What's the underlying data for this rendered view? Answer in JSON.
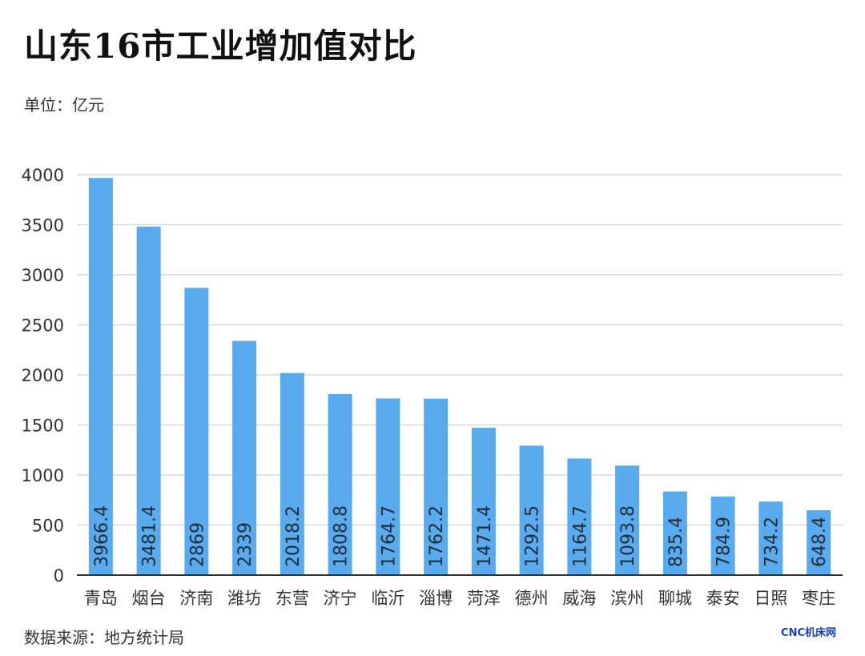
{
  "header": {
    "title": "山东16市工业增加值对比",
    "unit_label": "单位：亿元"
  },
  "footer": {
    "source": "数据来源：地方统计局",
    "brand": "CNC机床网"
  },
  "colors": {
    "bar": "#5aaaee",
    "grid": "#d9d9d9",
    "axis": "#333333",
    "label_text": "#1f2d3a"
  },
  "chart_data": {
    "type": "bar",
    "categories": [
      "青岛",
      "烟台",
      "济南",
      "潍坊",
      "东营",
      "济宁",
      "临沂",
      "淄博",
      "菏泽",
      "德州",
      "威海",
      "滨州",
      "聊城",
      "泰安",
      "日照",
      "枣庄"
    ],
    "values": [
      3966.4,
      3481.4,
      2869,
      2339,
      2018.2,
      1808.8,
      1764.7,
      1762.2,
      1471.4,
      1292.5,
      1164.7,
      1093.8,
      835.4,
      784.9,
      734.2,
      648.4
    ],
    "value_labels": [
      "3966.4",
      "3481.4",
      "2869",
      "2339",
      "2018.2",
      "1808.8",
      "1764.7",
      "1762.2",
      "1471.4",
      "1292.5",
      "1164.7",
      "1093.8",
      "835.4",
      "784.9",
      "734.2",
      "648.4"
    ],
    "yticks": [
      "0",
      "500",
      "1000",
      "1500",
      "2000",
      "2500",
      "3000",
      "3500",
      "4000"
    ],
    "ylim": [
      0,
      4000
    ],
    "grid": true,
    "legend": "none"
  }
}
